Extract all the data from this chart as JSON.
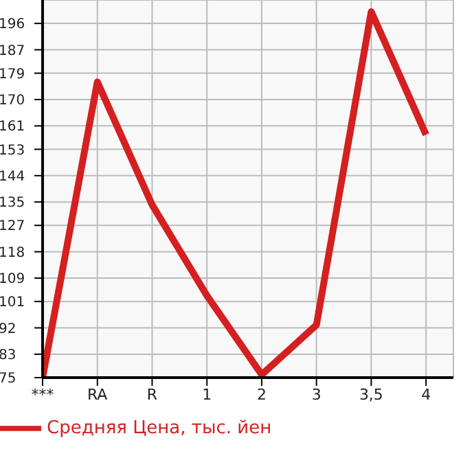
{
  "chart_data": {
    "type": "line",
    "categories": [
      "***",
      "RA",
      "R",
      "1",
      "2",
      "3",
      "3,5",
      "4"
    ],
    "series": [
      {
        "name": "Средняя Цена, тыс. йен",
        "color": "#d42020",
        "values": [
          75,
          176,
          134,
          103,
          76,
          93,
          200,
          158
        ]
      }
    ],
    "ylim": [
      75,
      204
    ],
    "yticks": [
      75,
      83,
      92,
      101,
      109,
      118,
      127,
      135,
      144,
      153,
      161,
      170,
      179,
      187,
      196
    ],
    "grid": true,
    "legend": "bottom left",
    "marker": "none"
  }
}
